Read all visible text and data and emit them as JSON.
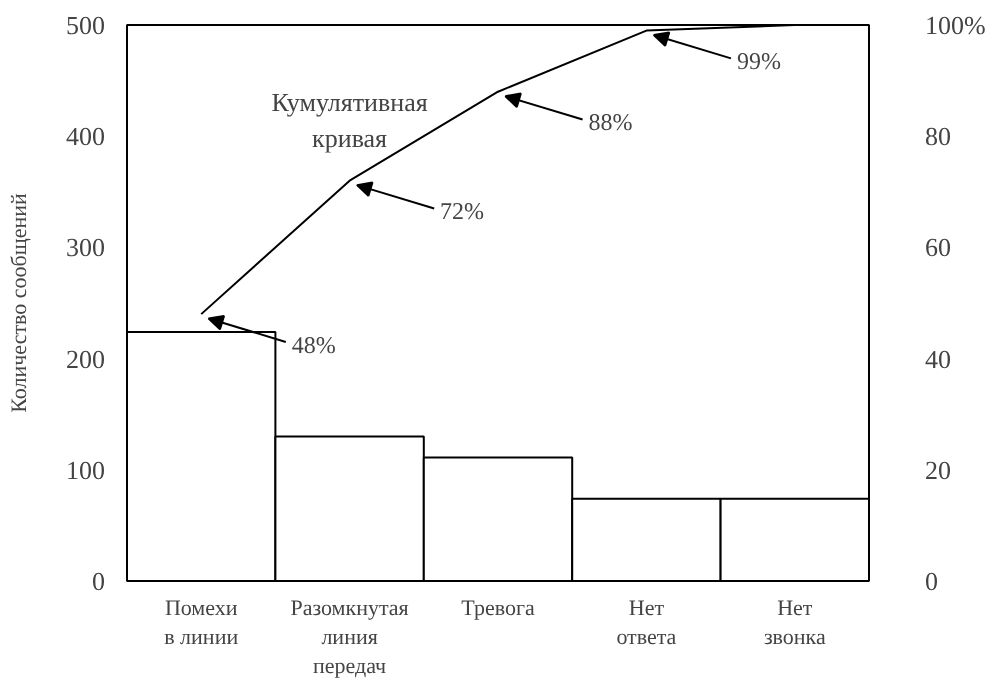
{
  "chart_data": {
    "type": "bar",
    "categories": [
      "Помехи\nв линии",
      "Разомкнутая\nлиния\nпередач",
      "Тревога",
      "Нет\nответа",
      "Нет\nзвонка"
    ],
    "ylabel": "Количество сообщений",
    "series": [
      {
        "color": "#ffffff",
        "values": [
          224,
          130,
          111,
          74,
          74
        ]
      },
      {
        "type": "line",
        "axis": "y2",
        "color": "#000000",
        "values": [
          48,
          72,
          88,
          99,
          100
        ],
        "value_labels": [
          "48%",
          "72%",
          "88%",
          "99%",
          null
        ]
      }
    ],
    "annotations": [
      "Кумулятивная\nкривая"
    ],
    "ylim": [
      0,
      500
    ],
    "yticks": [
      0,
      100,
      200,
      300,
      400,
      500
    ],
    "y2lim": [
      0,
      100
    ],
    "y2ticks": [
      0,
      20,
      40,
      60,
      80,
      {
        "value": 100,
        "label": "100%"
      }
    ],
    "grid": false
  }
}
